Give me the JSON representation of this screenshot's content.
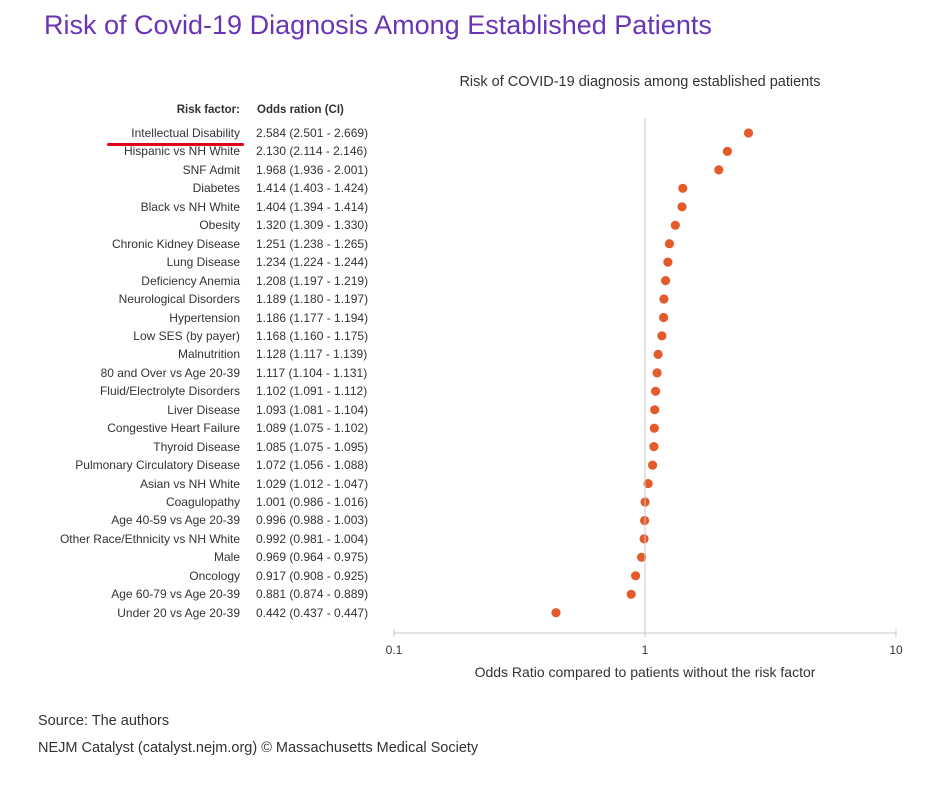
{
  "page_title": "Risk of Covid-19 Diagnosis Among Established Patients",
  "footer": {
    "source": "Source: The authors",
    "credit": "NEJM Catalyst (catalyst.nejm.org) © Massachusetts Medical Society"
  },
  "colors": {
    "title": "#6a35b5",
    "marker": "#e35b2b",
    "highlight_underline": "#e1001a",
    "axis": "#c8c8c8"
  },
  "chart_data": {
    "type": "scatter",
    "title": "Risk of COVID-19 diagnosis among established patients",
    "xlabel": "Odds Ratio compared to patients without the risk factor",
    "xscale": "log",
    "xlim": [
      0.1,
      10
    ],
    "xticks": [
      "0.1",
      "1",
      "10"
    ],
    "grid": false,
    "column_headers": {
      "risk": "Risk factor:",
      "odds": "Odds ration (CI)"
    },
    "highlighted_category": "Intellectual Disability",
    "categories": [
      "Intellectual Disability",
      "Hispanic vs NH White",
      "SNF Admit",
      "Diabetes",
      "Black vs NH White",
      "Obesity",
      "Chronic Kidney Disease",
      "Lung Disease",
      "Deficiency Anemia",
      "Neurological Disorders",
      "Hypertension",
      "Low SES (by payer)",
      "Malnutrition",
      "80 and Over vs Age 20-39",
      "Fluid/Electrolyte Disorders",
      "Liver Disease",
      "Congestive Heart Failure",
      "Thyroid Disease",
      "Pulmonary Circulatory Disease",
      "Asian vs NH White",
      "Coagulopathy",
      "Age 40-59 vs Age 20-39",
      "Other Race/Ethnicity vs NH White",
      "Male",
      "Oncology",
      "Age 60-79 vs Age 20-39",
      "Under 20 vs Age 20-39"
    ],
    "values": [
      2.584,
      2.13,
      1.968,
      1.414,
      1.404,
      1.32,
      1.251,
      1.234,
      1.208,
      1.189,
      1.186,
      1.168,
      1.128,
      1.117,
      1.102,
      1.093,
      1.089,
      1.085,
      1.072,
      1.029,
      1.001,
      0.996,
      0.992,
      0.969,
      0.917,
      0.881,
      0.442
    ],
    "ci_lower": [
      2.501,
      2.114,
      1.936,
      1.403,
      1.394,
      1.309,
      1.238,
      1.224,
      1.197,
      1.18,
      1.177,
      1.16,
      1.117,
      1.104,
      1.091,
      1.081,
      1.075,
      1.075,
      1.056,
      1.012,
      0.986,
      0.988,
      0.981,
      0.964,
      0.908,
      0.874,
      0.437
    ],
    "ci_upper": [
      2.669,
      2.146,
      2.001,
      1.424,
      1.414,
      1.33,
      1.265,
      1.244,
      1.219,
      1.197,
      1.194,
      1.175,
      1.139,
      1.131,
      1.112,
      1.104,
      1.102,
      1.095,
      1.088,
      1.047,
      1.016,
      1.003,
      1.004,
      0.975,
      0.925,
      0.889,
      0.447
    ],
    "odds_text": [
      "2.584 (2.501 - 2.669)",
      "2.130 (2.114 - 2.146)",
      "1.968 (1.936 - 2.001)",
      "1.414 (1.403 - 1.424)",
      "1.404 (1.394 - 1.414)",
      "1.320 (1.309 - 1.330)",
      "1.251 (1.238 - 1.265)",
      "1.234 (1.224 - 1.244)",
      "1.208 (1.197 - 1.219)",
      "1.189 (1.180 - 1.197)",
      "1.186 (1.177 - 1.194)",
      "1.168 (1.160 - 1.175)",
      "1.128 (1.117 - 1.139)",
      "1.117 (1.104 - 1.131)",
      "1.102 (1.091 - 1.112)",
      "1.093 (1.081 - 1.104)",
      "1.089 (1.075 - 1.102)",
      "1.085 (1.075 - 1.095)",
      "1.072 (1.056 - 1.088)",
      "1.029 (1.012 - 1.047)",
      "1.001 (0.986 - 1.016)",
      "0.996 (0.988 - 1.003)",
      "0.992 (0.981 - 1.004)",
      "0.969 (0.964 - 0.975)",
      "0.917 (0.908 - 0.925)",
      "0.881 (0.874 - 0.889)",
      "0.442 (0.437 - 0.447)"
    ]
  }
}
